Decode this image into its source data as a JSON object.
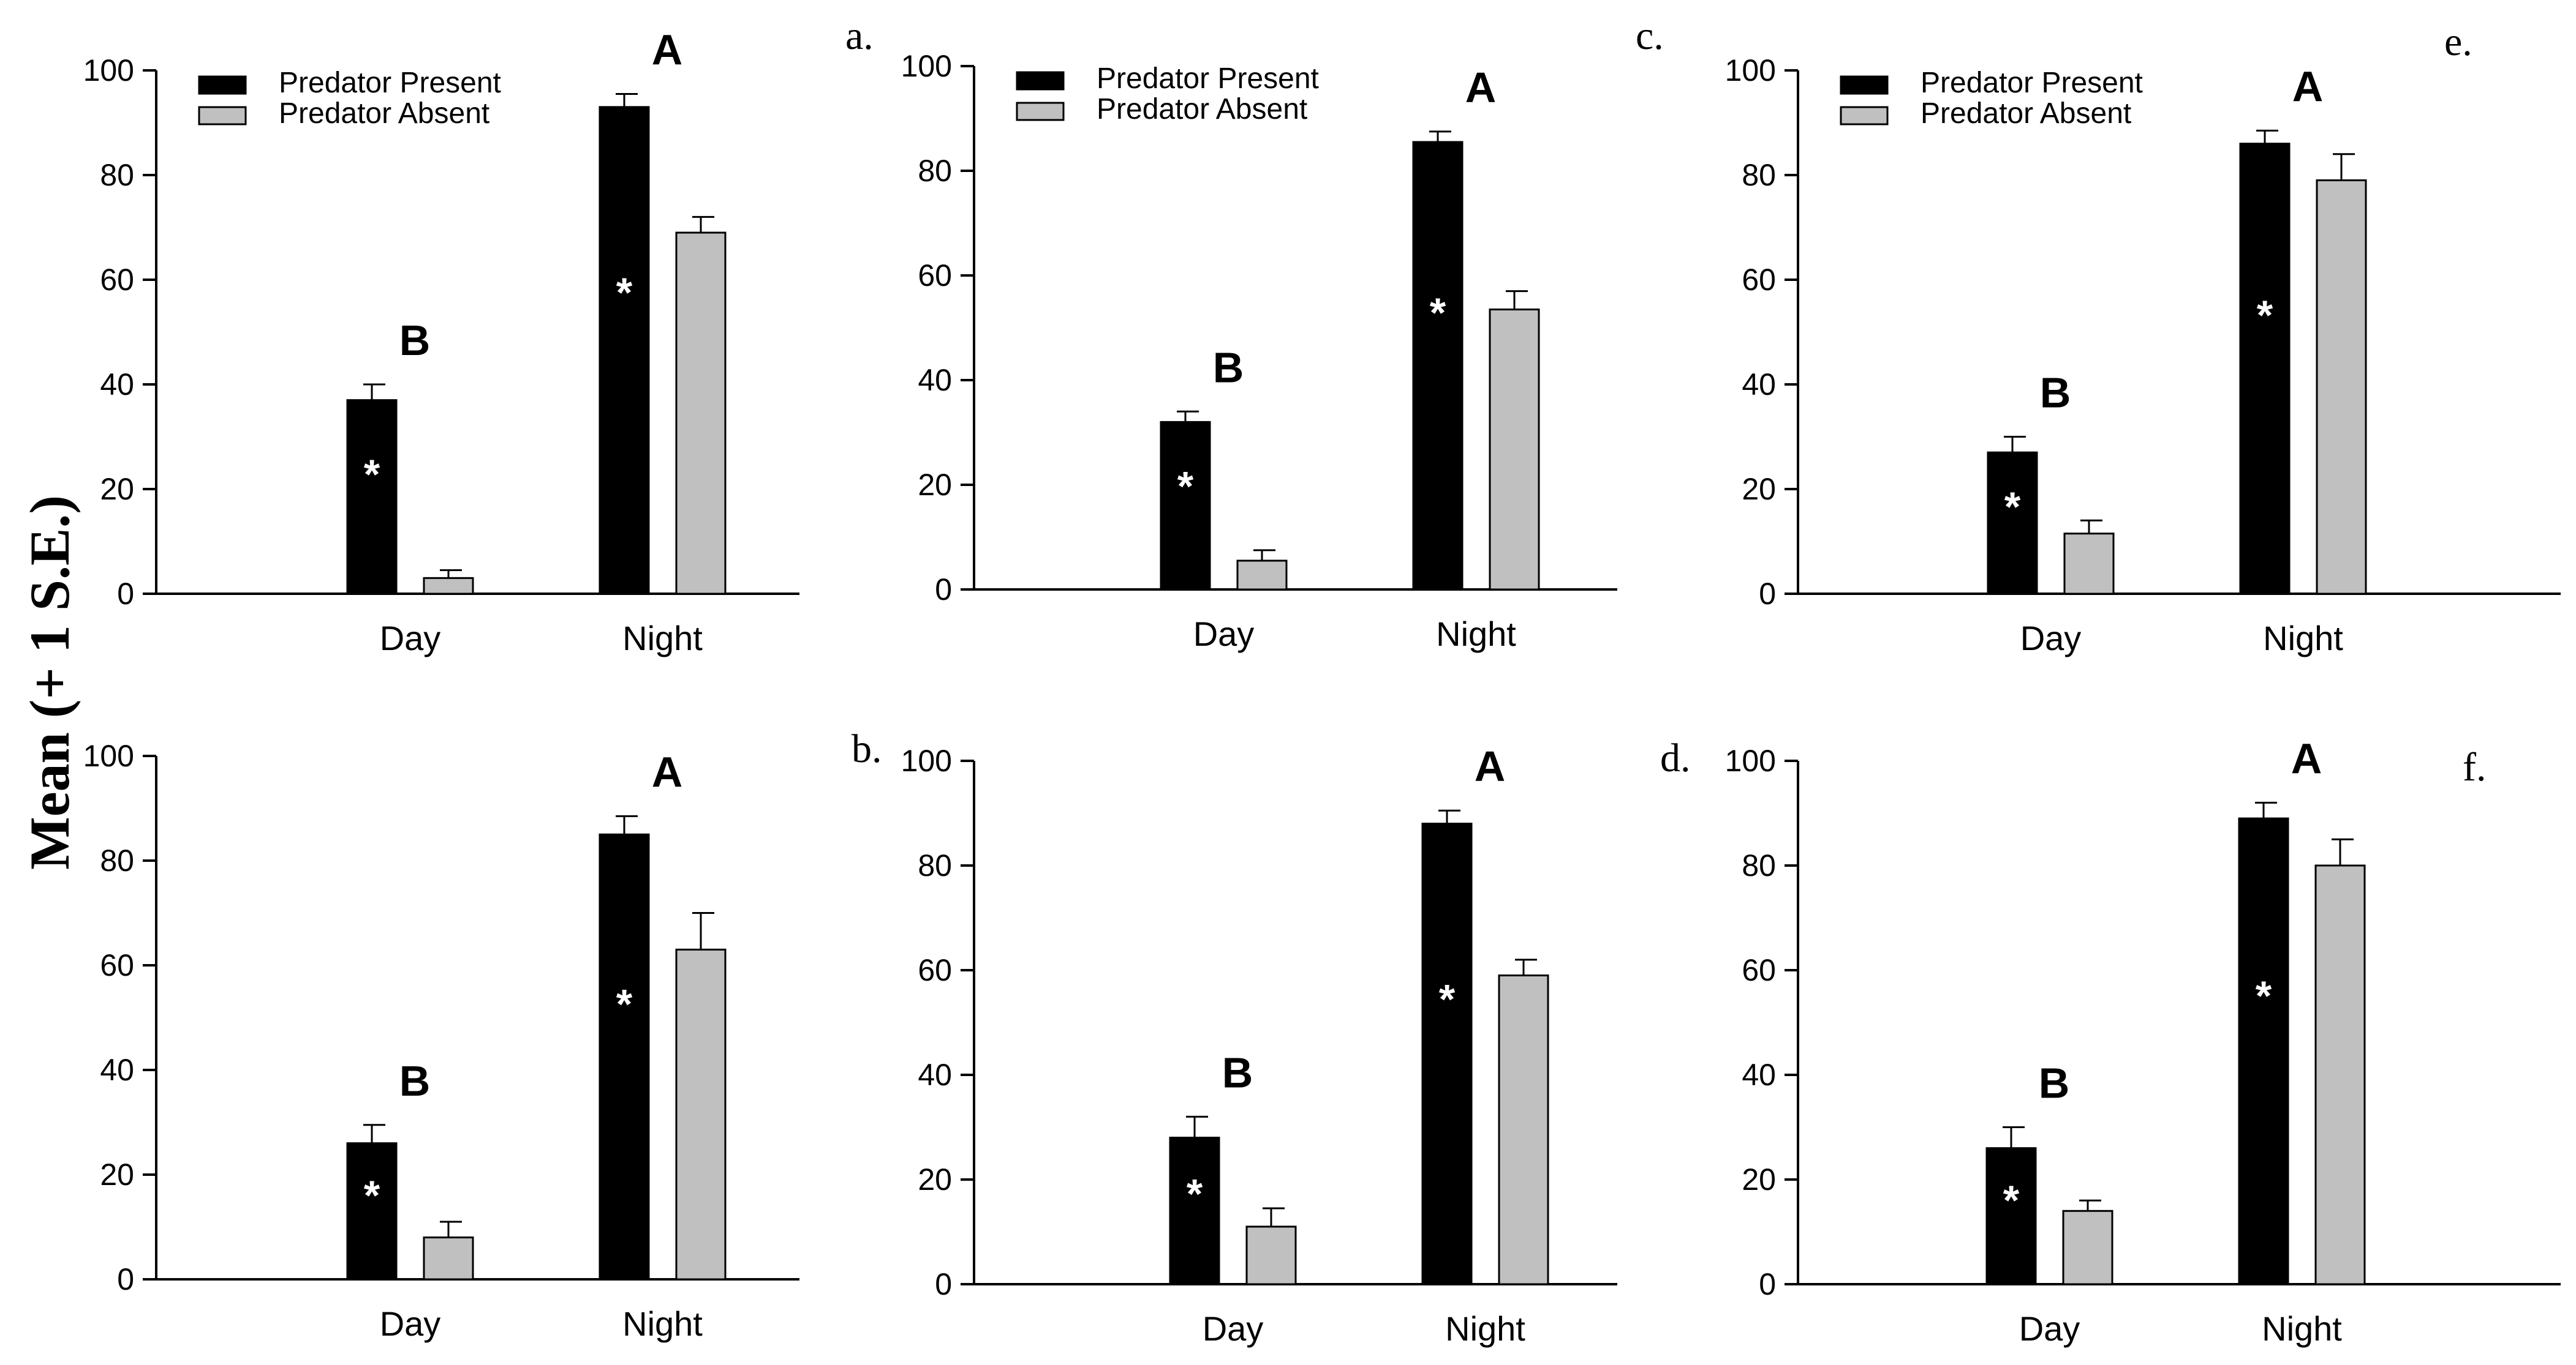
{
  "figure": {
    "y_axis_label": "Mean (+ 1 S.E.)"
  },
  "chart_data": [
    {
      "type": "bar",
      "panel": "a.",
      "categories": [
        "Day",
        "Night"
      ],
      "series": [
        {
          "name": "Predator Present",
          "color": "#000000",
          "values": [
            37,
            93
          ],
          "errors": [
            3,
            2.5
          ]
        },
        {
          "name": "Predator Absent",
          "color": "#c0c0c0",
          "values": [
            3,
            69
          ],
          "errors": [
            1.5,
            3
          ]
        }
      ],
      "ylim": [
        0,
        100
      ],
      "yticks": [
        0,
        20,
        40,
        60,
        80,
        100
      ],
      "significance_marks": [
        "*",
        "*"
      ],
      "group_letters": [
        "B",
        "A"
      ]
    },
    {
      "type": "bar",
      "panel": "b.",
      "categories": [
        "Day",
        "Night"
      ],
      "series": [
        {
          "name": "Predator Present",
          "color": "#000000",
          "values": [
            26,
            85
          ],
          "errors": [
            3.5,
            3.5
          ]
        },
        {
          "name": "Predator Absent",
          "color": "#c0c0c0",
          "values": [
            8,
            63
          ],
          "errors": [
            3,
            7
          ]
        }
      ],
      "ylim": [
        0,
        100
      ],
      "yticks": [
        0,
        20,
        40,
        60,
        80,
        100
      ],
      "significance_marks": [
        "*",
        "*"
      ],
      "group_letters": [
        "B",
        "A"
      ]
    },
    {
      "type": "bar",
      "panel": "c.",
      "categories": [
        "Day",
        "Night"
      ],
      "series": [
        {
          "name": "Predator Present",
          "color": "#000000",
          "values": [
            32,
            85.5
          ],
          "errors": [
            2,
            2
          ]
        },
        {
          "name": "Predator Absent",
          "color": "#c0c0c0",
          "values": [
            5.5,
            53.5
          ],
          "errors": [
            2,
            3.5
          ]
        }
      ],
      "ylim": [
        0,
        100
      ],
      "yticks": [
        0,
        20,
        40,
        60,
        80,
        100
      ],
      "significance_marks": [
        "*",
        "*"
      ],
      "group_letters": [
        "B",
        "A"
      ]
    },
    {
      "type": "bar",
      "panel": "d.",
      "categories": [
        "Day",
        "Night"
      ],
      "series": [
        {
          "name": "Predator Present",
          "color": "#000000",
          "values": [
            28,
            88
          ],
          "errors": [
            4,
            2.5
          ]
        },
        {
          "name": "Predator Absent",
          "color": "#c0c0c0",
          "values": [
            11,
            59
          ],
          "errors": [
            3.5,
            3
          ]
        }
      ],
      "ylim": [
        0,
        100
      ],
      "yticks": [
        0,
        20,
        40,
        60,
        80,
        100
      ],
      "significance_marks": [
        "*",
        "*"
      ],
      "group_letters": [
        "B",
        "A"
      ]
    },
    {
      "type": "bar",
      "panel": "e.",
      "categories": [
        "Day",
        "Night"
      ],
      "series": [
        {
          "name": "Predator Present",
          "color": "#000000",
          "values": [
            27,
            86
          ],
          "errors": [
            3,
            2.5
          ]
        },
        {
          "name": "Predator Absent",
          "color": "#c0c0c0",
          "values": [
            11.5,
            79
          ],
          "errors": [
            2.5,
            5
          ]
        }
      ],
      "ylim": [
        0,
        100
      ],
      "yticks": [
        0,
        20,
        40,
        60,
        80,
        100
      ],
      "significance_marks": [
        "*",
        "*"
      ],
      "group_letters": [
        "B",
        "A"
      ]
    },
    {
      "type": "bar",
      "panel": "f.",
      "categories": [
        "Day",
        "Night"
      ],
      "series": [
        {
          "name": "Predator Present",
          "color": "#000000",
          "values": [
            26,
            89
          ],
          "errors": [
            4,
            3
          ]
        },
        {
          "name": "Predator Absent",
          "color": "#c0c0c0",
          "values": [
            14,
            80
          ],
          "errors": [
            2,
            5
          ]
        }
      ],
      "ylim": [
        0,
        100
      ],
      "yticks": [
        0,
        20,
        40,
        60,
        80,
        100
      ],
      "significance_marks": [
        "*",
        "*"
      ],
      "group_letters": [
        "B",
        "A"
      ]
    }
  ]
}
